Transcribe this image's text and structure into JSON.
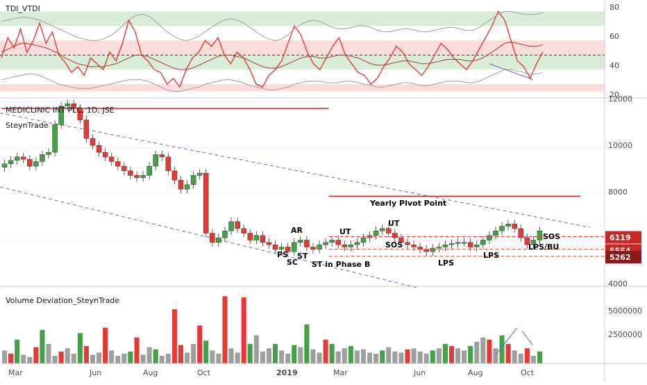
{
  "chart_data": [
    {
      "type": "line",
      "panel": "oscillator",
      "title": "TDI_VTDI",
      "ylim": [
        20,
        85
      ],
      "y_ticks": [
        "80",
        "60",
        "40",
        "20"
      ],
      "bands": [
        {
          "from": 70,
          "to": 80,
          "color": "#d8ecd8"
        },
        {
          "from": 50,
          "to": 60,
          "color": "#fbdcdc"
        },
        {
          "from": 40,
          "to": 50,
          "color": "#d8ecd8"
        },
        {
          "from": 25,
          "to": 30,
          "color": "#fbdcdc"
        }
      ],
      "midline": 50,
      "series": [
        {
          "color": "#e53935",
          "values": [
            48,
            62,
            55,
            68,
            52,
            60,
            72,
            58,
            66,
            50,
            45,
            38,
            42,
            36,
            48,
            44,
            40,
            52,
            46,
            58,
            74,
            66,
            50,
            46,
            40,
            38,
            30,
            34,
            28,
            40,
            48,
            52,
            60,
            56,
            62,
            50,
            44,
            52,
            48,
            40,
            30,
            28,
            36,
            40,
            46,
            58,
            70,
            64,
            52,
            44,
            40,
            48,
            56,
            62,
            50,
            44,
            38,
            36,
            30,
            34,
            42,
            48,
            56,
            52,
            44,
            40,
            36,
            42,
            50,
            58,
            54,
            48,
            44,
            40,
            46,
            54,
            62,
            70,
            80,
            74,
            60,
            46,
            42,
            34,
            44,
            52
          ]
        },
        {
          "color": "#a33a2a",
          "values": [
            52,
            54,
            56,
            58,
            58,
            57,
            56,
            55,
            53,
            51,
            48,
            46,
            44,
            43,
            42,
            42,
            42,
            43,
            44,
            46,
            48,
            50,
            50,
            49,
            47,
            45,
            43,
            41,
            40,
            40,
            41,
            43,
            45,
            47,
            49,
            50,
            50,
            49,
            48,
            46,
            44,
            42,
            41,
            41,
            42,
            44,
            46,
            48,
            49,
            49,
            48,
            48,
            49,
            50,
            50,
            49,
            48,
            46,
            44,
            43,
            43,
            44,
            45,
            46,
            46,
            45,
            44,
            44,
            45,
            46,
            47,
            47,
            47,
            46,
            46,
            47,
            49,
            52,
            55,
            58,
            59,
            58,
            57,
            56,
            56,
            57
          ]
        },
        {
          "color": "#9e9e9e",
          "values": [
            73,
            74,
            75,
            76,
            76,
            75,
            74,
            72,
            70,
            68,
            66,
            64,
            62,
            61,
            60,
            60,
            61,
            63,
            66,
            70,
            74,
            77,
            78,
            77,
            74,
            70,
            66,
            63,
            61,
            60,
            61,
            63,
            66,
            69,
            72,
            74,
            75,
            74,
            72,
            69,
            66,
            63,
            61,
            60,
            61,
            64,
            68,
            71,
            73,
            74,
            73,
            71,
            69,
            68,
            68,
            69,
            70,
            70,
            69,
            67,
            66,
            66,
            67,
            68,
            68,
            67,
            66,
            66,
            67,
            68,
            69,
            69,
            68,
            67,
            67,
            69,
            72,
            75,
            78,
            80,
            80,
            79,
            78,
            78,
            78,
            79
          ]
        },
        {
          "color": "#9e9e9e",
          "values": [
            33,
            34,
            35,
            36,
            37,
            37,
            36,
            34,
            32,
            30,
            29,
            28,
            27,
            27,
            27,
            28,
            29,
            30,
            31,
            32,
            33,
            33,
            33,
            32,
            30,
            28,
            26,
            25,
            25,
            26,
            27,
            28,
            30,
            31,
            32,
            33,
            33,
            32,
            31,
            29,
            28,
            27,
            26,
            26,
            27,
            28,
            30,
            31,
            32,
            32,
            32,
            31,
            31,
            31,
            32,
            32,
            31,
            30,
            29,
            28,
            28,
            29,
            30,
            31,
            31,
            30,
            29,
            29,
            30,
            31,
            32,
            32,
            32,
            31,
            31,
            32,
            34,
            36,
            38,
            40,
            40,
            39,
            38,
            37,
            37,
            38
          ]
        }
      ]
    },
    {
      "type": "candlestick",
      "panel": "price",
      "title": "MEDICLINIC INT PLC, 1D, JSE",
      "subtitle": "SteynTrade",
      "ylim": [
        3900,
        12100
      ],
      "y_ticks": [
        "12000",
        "10000",
        "8000",
        "6000",
        "4000"
      ],
      "x_ticks": [
        "Mar",
        "Jun",
        "Aug",
        "Oct",
        "2019",
        "Mar",
        "Jun",
        "Aug",
        "Oct"
      ],
      "x_tick_bold": [
        false,
        false,
        false,
        false,
        true,
        false,
        false,
        false,
        false
      ],
      "close": [
        9300,
        9450,
        9600,
        9500,
        9200,
        9400,
        9700,
        9800,
        11000,
        11800,
        11900,
        11700,
        11200,
        10400,
        10100,
        9800,
        9600,
        9400,
        9200,
        9000,
        8800,
        8700,
        8800,
        9200,
        9700,
        9600,
        9000,
        8600,
        8200,
        8400,
        8800,
        8900,
        6300,
        5900,
        6100,
        6400,
        6800,
        6500,
        6300,
        6000,
        6200,
        5900,
        5800,
        5600,
        5700,
        5500,
        5900,
        6000,
        5700,
        5600,
        5800,
        5900,
        6000,
        5800,
        5700,
        5800,
        5900,
        6100,
        6200,
        6400,
        6500,
        6300,
        6100,
        5900,
        5800,
        5700,
        5600,
        5500,
        5650,
        5700,
        5800,
        5850,
        5900,
        5900,
        5700,
        5800,
        6000,
        6200,
        6400,
        6600,
        6700,
        6500,
        6100,
        5800,
        6000,
        6400
      ],
      "price_labels": [
        {
          "value": "6119",
          "y": 6119,
          "color": "#c62828"
        },
        {
          "value": "5554",
          "y": 5554,
          "color": "#c62828"
        },
        {
          "value": "5262",
          "y": 5262,
          "color": "#8b1a1a"
        }
      ],
      "lines": [
        {
          "y": 11700,
          "from_bar": 0,
          "to_bar": 52,
          "color": "#c62828"
        },
        {
          "y": 7900,
          "from_bar": 52,
          "to_bar": 92,
          "color": "#c62828"
        }
      ],
      "dashed_levels": [
        {
          "y": 6150,
          "from_bar": 52,
          "to_bar": 100
        },
        {
          "y": 5600,
          "from_bar": 52,
          "to_bar": 100
        },
        {
          "y": 5300,
          "from_bar": 52,
          "to_bar": 100
        }
      ],
      "labels": [
        "Yearly Pivot Point",
        "AR",
        "UT",
        "UT",
        "SOS",
        "SOS",
        "PS",
        "SC",
        "ST",
        "ST in Phase B",
        "LPS",
        "LPS",
        "LPS/BU"
      ]
    },
    {
      "type": "bar",
      "panel": "volume",
      "title": "Volume Deviation_SteynTrade",
      "ylim": [
        0,
        6000000
      ],
      "y_ticks": [
        "5000000",
        "2500000"
      ],
      "values": [
        1200000,
        900000,
        2200000,
        800000,
        600000,
        1500000,
        3100000,
        1800000,
        700000,
        1100000,
        1400000,
        900000,
        2800000,
        1600000,
        800000,
        1000000,
        3300000,
        1200000,
        700000,
        900000,
        1100000,
        2400000,
        800000,
        1500000,
        1300000,
        700000,
        900000,
        5000000,
        1700000,
        1000000,
        1800000,
        3500000,
        2100000,
        1200000,
        900000,
        6200000,
        1400000,
        1000000,
        6100000,
        1800000,
        2600000,
        1100000,
        1400000,
        1800000,
        1200000,
        900000,
        1700000,
        1500000,
        3600000,
        1300000,
        1000000,
        2200000,
        1800000,
        1100000,
        1400000,
        1600000,
        1200000,
        1300000,
        1000000,
        900000,
        1200000,
        1500000,
        1100000,
        1000000,
        1300000,
        1400000,
        1100000,
        900000,
        1200000,
        1400000,
        1800000,
        1600000,
        1400000,
        1200000,
        1600000,
        2000000,
        2400000,
        2200000,
        1400000,
        2600000,
        1800000,
        1200000,
        900000,
        1400000,
        700000,
        1100000
      ],
      "colors": [
        "#9e9e9e",
        "#e53935",
        "#43a047",
        "#9e9e9e",
        "#9e9e9e",
        "#e53935",
        "#43a047",
        "#9e9e9e",
        "#9e9e9e",
        "#e53935",
        "#9e9e9e",
        "#9e9e9e",
        "#43a047",
        "#e53935",
        "#9e9e9e",
        "#9e9e9e",
        "#e53935",
        "#9e9e9e",
        "#9e9e9e",
        "#9e9e9e",
        "#43a047",
        "#e53935",
        "#9e9e9e",
        "#9e9e9e",
        "#43a047",
        "#9e9e9e",
        "#9e9e9e",
        "#e53935",
        "#e53935",
        "#9e9e9e",
        "#9e9e9e",
        "#e53935",
        "#43a047",
        "#9e9e9e",
        "#9e9e9e",
        "#e53935",
        "#9e9e9e",
        "#9e9e9e",
        "#e53935",
        "#43a047",
        "#9e9e9e",
        "#9e9e9e",
        "#9e9e9e",
        "#43a047",
        "#9e9e9e",
        "#9e9e9e",
        "#43a047",
        "#9e9e9e",
        "#43a047",
        "#9e9e9e",
        "#9e9e9e",
        "#e53935",
        "#43a047",
        "#9e9e9e",
        "#9e9e9e",
        "#43a047",
        "#9e9e9e",
        "#9e9e9e",
        "#9e9e9e",
        "#9e9e9e",
        "#43a047",
        "#9e9e9e",
        "#9e9e9e",
        "#9e9e9e",
        "#e53935",
        "#9e9e9e",
        "#9e9e9e",
        "#9e9e9e",
        "#43a047",
        "#9e9e9e",
        "#43a047",
        "#e53935",
        "#9e9e9e",
        "#9e9e9e",
        "#43a047",
        "#9e9e9e",
        "#9e9e9e",
        "#e53935",
        "#9e9e9e",
        "#43a047",
        "#e53935",
        "#9e9e9e",
        "#9e9e9e",
        "#e53935",
        "#9e9e9e",
        "#43a047"
      ]
    }
  ]
}
